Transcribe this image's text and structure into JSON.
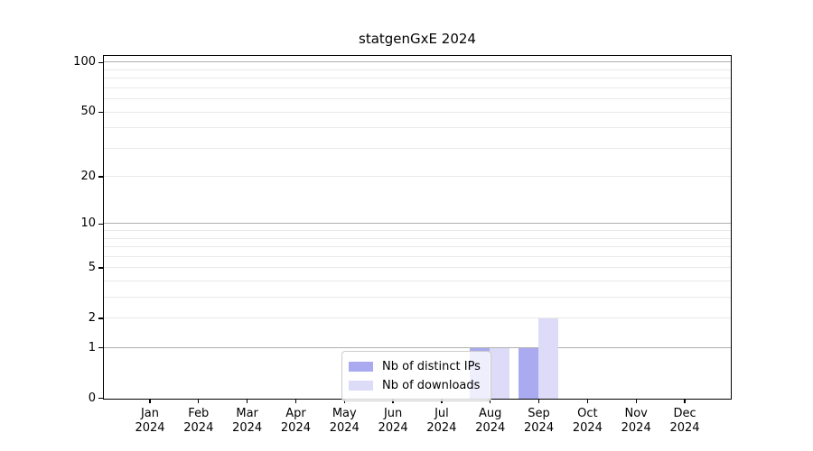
{
  "chart_data": {
    "type": "bar",
    "title": "statgenGxE 2024",
    "year_label": "2024",
    "categories": [
      "Jan",
      "Feb",
      "Mar",
      "Apr",
      "May",
      "Jun",
      "Jul",
      "Aug",
      "Sep",
      "Oct",
      "Nov",
      "Dec"
    ],
    "series": [
      {
        "name": "Nb of distinct IPs",
        "color": "#aaaaf0",
        "values": [
          0,
          0,
          0,
          0,
          0,
          0,
          0,
          1,
          1,
          0,
          0,
          0
        ]
      },
      {
        "name": "Nb of downloads",
        "color": "#dcdcf8",
        "values": [
          0,
          0,
          0,
          0,
          0,
          0,
          0,
          1,
          2,
          0,
          0,
          0
        ]
      }
    ],
    "xlabel": "",
    "ylabel": "",
    "yscale": "log1p",
    "ylim": [
      0,
      100
    ],
    "y_ticks": [
      0,
      1,
      2,
      5,
      10,
      20,
      50,
      100
    ],
    "y_major_gridlines": [
      1,
      10,
      100
    ],
    "y_minor_gridlines": [
      2,
      3,
      4,
      5,
      6,
      7,
      8,
      9,
      20,
      30,
      40,
      50,
      60,
      70,
      80,
      90
    ],
    "grid": "on",
    "legend_position": "lower center"
  },
  "colors": {
    "grid_major": "#b0b0b0",
    "grid_minor": "#e9e9e9",
    "axis": "#000000",
    "background": "#ffffff"
  }
}
